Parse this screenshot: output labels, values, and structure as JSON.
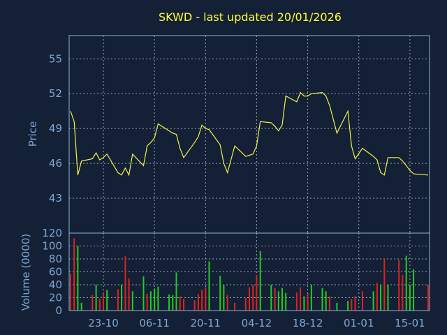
{
  "chart_data": {
    "type": "line",
    "title": "SKWD - last updated 20/01/2026",
    "price_panel": {
      "ylabel": "Price",
      "ylim": [
        40,
        57
      ],
      "yticks": [
        43,
        46,
        49,
        52,
        55
      ],
      "series": [
        {
          "x": [
            "2025-10-14",
            "2025-10-15",
            "2025-10-16",
            "2025-10-17",
            "2025-10-20",
            "2025-10-21",
            "2025-10-22",
            "2025-10-23",
            "2025-10-24",
            "2025-10-27",
            "2025-10-28",
            "2025-10-29",
            "2025-10-30",
            "2025-10-31",
            "2025-11-03",
            "2025-11-04",
            "2025-11-05",
            "2025-11-06",
            "2025-11-07",
            "2025-11-10",
            "2025-11-11",
            "2025-11-12",
            "2025-11-13",
            "2025-11-14",
            "2025-11-17",
            "2025-11-18",
            "2025-11-19",
            "2025-11-20",
            "2025-11-21",
            "2025-11-24",
            "2025-11-25",
            "2025-11-26",
            "2025-11-28",
            "2025-12-01",
            "2025-12-02",
            "2025-12-03",
            "2025-12-04",
            "2025-12-05",
            "2025-12-08",
            "2025-12-09",
            "2025-12-10",
            "2025-12-11",
            "2025-12-12",
            "2025-12-15",
            "2025-12-16",
            "2025-12-17",
            "2025-12-18",
            "2025-12-19",
            "2025-12-22",
            "2025-12-23",
            "2025-12-24",
            "2025-12-26",
            "2025-12-29",
            "2025-12-30",
            "2025-12-31",
            "2026-01-02",
            "2026-01-05",
            "2026-01-06",
            "2026-01-07",
            "2026-01-08",
            "2026-01-09",
            "2026-01-12",
            "2026-01-13",
            "2026-01-14",
            "2026-01-15",
            "2026-01-16",
            "2026-01-20"
          ],
          "values": [
            50.5,
            49.6,
            45.0,
            46.2,
            46.4,
            46.9,
            46.3,
            46.5,
            46.8,
            45.2,
            45.0,
            45.6,
            45.0,
            46.8,
            45.8,
            47.5,
            47.8,
            48.2,
            49.4,
            48.8,
            48.6,
            48.5,
            47.3,
            46.5,
            47.8,
            48.3,
            49.3,
            49.0,
            48.9,
            47.6,
            46.0,
            45.2,
            47.5,
            46.6,
            46.7,
            46.8,
            47.5,
            49.6,
            49.5,
            49.2,
            48.8,
            49.3,
            51.8,
            51.3,
            52.1,
            51.8,
            51.8,
            52.0,
            52.1,
            51.8,
            51.0,
            48.6,
            50.5,
            47.5,
            46.4,
            47.3,
            46.6,
            46.3,
            45.2,
            45.0,
            46.5,
            46.5,
            46.2,
            45.8,
            45.4,
            45.1,
            45.0
          ]
        }
      ]
    },
    "volume_panel": {
      "ylabel": "Volume (0000)",
      "ylim": [
        0,
        120
      ],
      "yticks": [
        0,
        20,
        40,
        60,
        80,
        100,
        120
      ],
      "colors": {
        "up": "#22cc22",
        "down": "#dd2222"
      },
      "bars": [
        {
          "x": "2025-10-14",
          "v": 57,
          "dir": "down"
        },
        {
          "x": "2025-10-15",
          "v": 112,
          "dir": "down"
        },
        {
          "x": "2025-10-16",
          "v": 100,
          "dir": "up"
        },
        {
          "x": "2025-10-17",
          "v": 12,
          "dir": "up"
        },
        {
          "x": "2025-10-20",
          "v": 24,
          "dir": "down"
        },
        {
          "x": "2025-10-21",
          "v": 40,
          "dir": "up"
        },
        {
          "x": "2025-10-22",
          "v": 18,
          "dir": "down"
        },
        {
          "x": "2025-10-23",
          "v": 26,
          "dir": "down"
        },
        {
          "x": "2025-10-24",
          "v": 32,
          "dir": "up"
        },
        {
          "x": "2025-10-27",
          "v": 33,
          "dir": "down"
        },
        {
          "x": "2025-10-28",
          "v": 40,
          "dir": "up"
        },
        {
          "x": "2025-10-29",
          "v": 84,
          "dir": "down"
        },
        {
          "x": "2025-10-30",
          "v": 50,
          "dir": "down"
        },
        {
          "x": "2025-10-31",
          "v": 30,
          "dir": "up"
        },
        {
          "x": "2025-11-03",
          "v": 53,
          "dir": "up"
        },
        {
          "x": "2025-11-04",
          "v": 26,
          "dir": "down"
        },
        {
          "x": "2025-11-05",
          "v": 30,
          "dir": "up"
        },
        {
          "x": "2025-11-06",
          "v": 34,
          "dir": "up"
        },
        {
          "x": "2025-11-07",
          "v": 37,
          "dir": "up"
        },
        {
          "x": "2025-11-10",
          "v": 25,
          "dir": "up"
        },
        {
          "x": "2025-11-11",
          "v": 24,
          "dir": "up"
        },
        {
          "x": "2025-11-12",
          "v": 59,
          "dir": "up"
        },
        {
          "x": "2025-11-13",
          "v": 22,
          "dir": "down"
        },
        {
          "x": "2025-11-14",
          "v": 18,
          "dir": "down"
        },
        {
          "x": "2025-11-17",
          "v": 16,
          "dir": "down"
        },
        {
          "x": "2025-11-18",
          "v": 26,
          "dir": "down"
        },
        {
          "x": "2025-11-19",
          "v": 32,
          "dir": "down"
        },
        {
          "x": "2025-11-20",
          "v": 36,
          "dir": "down"
        },
        {
          "x": "2025-11-21",
          "v": 76,
          "dir": "up"
        },
        {
          "x": "2025-11-24",
          "v": 54,
          "dir": "up"
        },
        {
          "x": "2025-11-25",
          "v": 40,
          "dir": "up"
        },
        {
          "x": "2025-11-26",
          "v": 24,
          "dir": "down"
        },
        {
          "x": "2025-11-28",
          "v": 12,
          "dir": "down"
        },
        {
          "x": "2025-12-01",
          "v": 20,
          "dir": "down"
        },
        {
          "x": "2025-12-02",
          "v": 36,
          "dir": "down"
        },
        {
          "x": "2025-12-03",
          "v": 40,
          "dir": "down"
        },
        {
          "x": "2025-12-04",
          "v": 55,
          "dir": "down"
        },
        {
          "x": "2025-12-05",
          "v": 92,
          "dir": "up"
        },
        {
          "x": "2025-12-08",
          "v": 40,
          "dir": "up"
        },
        {
          "x": "2025-12-09",
          "v": 35,
          "dir": "down"
        },
        {
          "x": "2025-12-10",
          "v": 30,
          "dir": "up"
        },
        {
          "x": "2025-12-11",
          "v": 35,
          "dir": "up"
        },
        {
          "x": "2025-12-12",
          "v": 27,
          "dir": "up"
        },
        {
          "x": "2025-12-15",
          "v": 28,
          "dir": "down"
        },
        {
          "x": "2025-12-16",
          "v": 36,
          "dir": "down"
        },
        {
          "x": "2025-12-17",
          "v": 22,
          "dir": "up"
        },
        {
          "x": "2025-12-18",
          "v": 26,
          "dir": "down"
        },
        {
          "x": "2025-12-19",
          "v": 40,
          "dir": "up"
        },
        {
          "x": "2025-12-22",
          "v": 35,
          "dir": "up"
        },
        {
          "x": "2025-12-23",
          "v": 30,
          "dir": "up"
        },
        {
          "x": "2025-12-24",
          "v": 22,
          "dir": "down"
        },
        {
          "x": "2025-12-26",
          "v": 12,
          "dir": "up"
        },
        {
          "x": "2025-12-29",
          "v": 15,
          "dir": "up"
        },
        {
          "x": "2025-12-30",
          "v": 18,
          "dir": "down"
        },
        {
          "x": "2025-12-31",
          "v": 22,
          "dir": "down"
        },
        {
          "x": "2026-01-02",
          "v": 30,
          "dir": "down"
        },
        {
          "x": "2026-01-05",
          "v": 30,
          "dir": "up"
        },
        {
          "x": "2026-01-06",
          "v": 43,
          "dir": "down"
        },
        {
          "x": "2026-01-07",
          "v": 40,
          "dir": "up"
        },
        {
          "x": "2026-01-08",
          "v": 80,
          "dir": "down"
        },
        {
          "x": "2026-01-09",
          "v": 40,
          "dir": "up"
        },
        {
          "x": "2026-01-12",
          "v": 78,
          "dir": "down"
        },
        {
          "x": "2026-01-13",
          "v": 55,
          "dir": "down"
        },
        {
          "x": "2026-01-14",
          "v": 85,
          "dir": "up"
        },
        {
          "x": "2026-01-15",
          "v": 40,
          "dir": "up"
        },
        {
          "x": "2026-01-16",
          "v": 64,
          "dir": "up"
        },
        {
          "x": "2026-01-20",
          "v": 40,
          "dir": "down"
        }
      ]
    },
    "x_ticks": [
      {
        "date": "2025-10-23",
        "label": "23-10"
      },
      {
        "date": "2025-11-06",
        "label": "06-11"
      },
      {
        "date": "2025-11-20",
        "label": "20-11"
      },
      {
        "date": "2025-12-04",
        "label": "04-12"
      },
      {
        "date": "2025-12-18",
        "label": "18-12"
      },
      {
        "date": "2026-01-01",
        "label": "01-01"
      },
      {
        "date": "2026-01-15",
        "label": "15-01"
      }
    ],
    "xlim": [
      "2025-10-14",
      "2026-01-20"
    ],
    "grid": true,
    "colors": {
      "background": "#132035",
      "price_line": "#f2f24a",
      "title": "#ffff33",
      "tick": "#7fa6d6"
    }
  }
}
